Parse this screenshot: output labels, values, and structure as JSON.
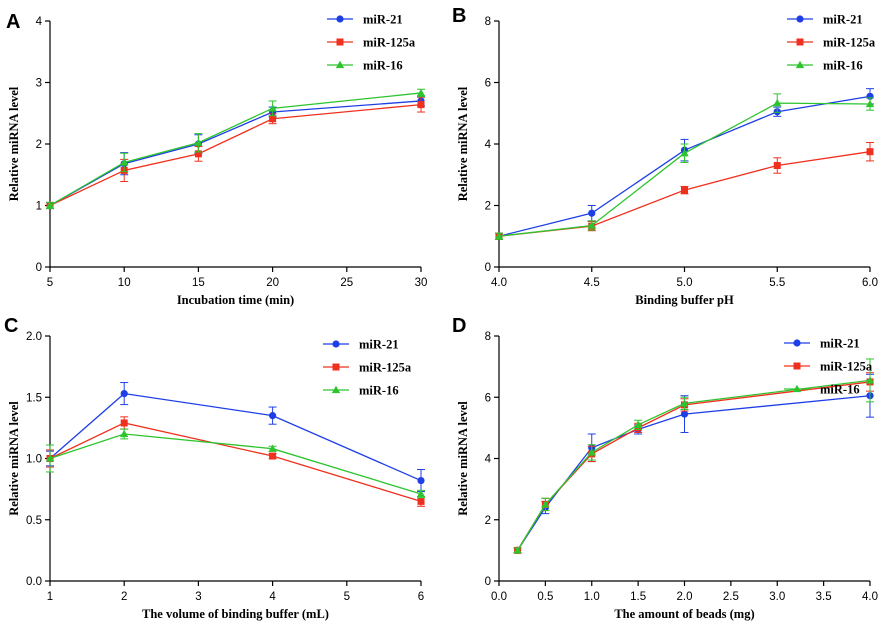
{
  "figure": {
    "colors": {
      "miR-21": "#1f3fe6",
      "miR-125a": "#f0301e",
      "miR-16": "#2ec42e"
    }
  },
  "chart_data": [
    {
      "type": "line",
      "panel": "A",
      "xlabel": "Incubation time (min)",
      "ylabel": "Relative miRNA level",
      "xlim": [
        5,
        30
      ],
      "ylim": [
        0,
        4
      ],
      "xticks": [
        5,
        10,
        15,
        20,
        25,
        30
      ],
      "yticks": [
        0,
        1,
        2,
        3,
        4
      ],
      "xtick_labels": [
        "5",
        "10",
        "15",
        "20",
        "25",
        "30"
      ],
      "ytick_labels": [
        "0",
        "1",
        "2",
        "3",
        "4"
      ],
      "legend_position": "top-right",
      "x": [
        5,
        10,
        15,
        20,
        30
      ],
      "series": [
        {
          "name": "miR-21",
          "marker": "circle",
          "values": [
            1.0,
            1.68,
            2.0,
            2.52,
            2.7
          ],
          "errors": [
            0.05,
            0.18,
            0.15,
            0.08,
            0.08
          ]
        },
        {
          "name": "miR-125a",
          "marker": "square",
          "values": [
            1.0,
            1.57,
            1.84,
            2.41,
            2.64
          ],
          "errors": [
            0.05,
            0.18,
            0.12,
            0.08,
            0.12
          ]
        },
        {
          "name": "miR-16",
          "marker": "triangle",
          "values": [
            1.0,
            1.7,
            2.02,
            2.58,
            2.83
          ],
          "errors": [
            0.05,
            0.15,
            0.15,
            0.12,
            0.06
          ]
        }
      ]
    },
    {
      "type": "line",
      "panel": "B",
      "xlabel": "Binding buffer pH",
      "ylabel": "Relative miRNA level",
      "xlim": [
        4.0,
        6.0
      ],
      "ylim": [
        0,
        8
      ],
      "xticks": [
        4.0,
        4.5,
        5.0,
        5.5,
        6.0
      ],
      "yticks": [
        0,
        2,
        4,
        6,
        8
      ],
      "xtick_labels": [
        "4.0",
        "4.5",
        "5.0",
        "5.5",
        "6.0"
      ],
      "ytick_labels": [
        "0",
        "2",
        "4",
        "6",
        "8"
      ],
      "legend_position": "top-right",
      "x": [
        4.0,
        4.5,
        5.0,
        5.5,
        6.0
      ],
      "series": [
        {
          "name": "miR-21",
          "marker": "circle",
          "values": [
            1.0,
            1.75,
            3.8,
            5.05,
            5.55
          ],
          "errors": [
            0.1,
            0.25,
            0.35,
            0.15,
            0.25
          ]
        },
        {
          "name": "miR-125a",
          "marker": "square",
          "values": [
            1.0,
            1.33,
            2.5,
            3.3,
            3.75
          ],
          "errors": [
            0.1,
            0.15,
            0.12,
            0.25,
            0.3
          ]
        },
        {
          "name": "miR-16",
          "marker": "triangle",
          "values": [
            1.0,
            1.35,
            3.7,
            5.33,
            5.3
          ],
          "errors": [
            0.1,
            0.15,
            0.3,
            0.3,
            0.2
          ]
        }
      ]
    },
    {
      "type": "line",
      "panel": "C",
      "xlabel": "The volume of binding buffer  (mL)",
      "ylabel": "Relative miRNA level",
      "xlim": [
        1,
        6
      ],
      "ylim": [
        0,
        2.0
      ],
      "xticks": [
        1,
        2,
        3,
        4,
        5,
        6
      ],
      "yticks": [
        0.0,
        0.5,
        1.0,
        1.5,
        2.0
      ],
      "xtick_labels": [
        "1",
        "2",
        "3",
        "4",
        "5",
        "6"
      ],
      "ytick_labels": [
        "0.0",
        "0.5",
        "1.0",
        "1.5",
        "2.0"
      ],
      "legend_position": "top-right",
      "x": [
        1,
        2,
        4,
        6
      ],
      "series": [
        {
          "name": "miR-21",
          "marker": "circle",
          "values": [
            1.0,
            1.53,
            1.35,
            0.82
          ],
          "errors": [
            0.06,
            0.09,
            0.07,
            0.09
          ]
        },
        {
          "name": "miR-125a",
          "marker": "square",
          "values": [
            1.0,
            1.29,
            1.02,
            0.65
          ],
          "errors": [
            0.07,
            0.05,
            0.02,
            0.04
          ]
        },
        {
          "name": "miR-16",
          "marker": "triangle",
          "values": [
            1.0,
            1.2,
            1.08,
            0.71
          ],
          "errors": [
            0.11,
            0.04,
            0.02,
            0.03
          ]
        }
      ]
    },
    {
      "type": "line",
      "panel": "D",
      "xlabel": "The amount of  beads (mg)",
      "ylabel": "Relative miRNA level",
      "xlim": [
        0.0,
        4.0
      ],
      "ylim": [
        0,
        8
      ],
      "xticks": [
        0.0,
        0.5,
        1.0,
        1.5,
        2.0,
        2.5,
        3.0,
        3.5,
        4.0
      ],
      "yticks": [
        0,
        2,
        4,
        6,
        8
      ],
      "xtick_labels": [
        "0.0",
        "0.5",
        "1.0",
        "1.5",
        "2.0",
        "2.5",
        "3.0",
        "3.5",
        "4.0"
      ],
      "ytick_labels": [
        "0",
        "2",
        "4",
        "6",
        "8"
      ],
      "legend_position": "top-right",
      "x": [
        0.2,
        0.5,
        1.0,
        1.5,
        2.0,
        4.0
      ],
      "series": [
        {
          "name": "miR-21",
          "marker": "circle",
          "values": [
            1.0,
            2.4,
            4.35,
            4.95,
            5.45,
            6.05
          ],
          "errors": [
            0.08,
            0.2,
            0.45,
            0.15,
            0.6,
            0.7
          ]
        },
        {
          "name": "miR-125a",
          "marker": "square",
          "values": [
            1.0,
            2.5,
            4.15,
            5.0,
            5.75,
            6.5
          ],
          "errors": [
            0.08,
            0.2,
            0.25,
            0.15,
            0.2,
            0.3
          ]
        },
        {
          "name": "miR-16",
          "marker": "triangle",
          "values": [
            1.0,
            2.5,
            4.2,
            5.1,
            5.8,
            6.55
          ],
          "errors": [
            0.08,
            0.2,
            0.25,
            0.15,
            0.2,
            0.7
          ]
        }
      ]
    }
  ]
}
